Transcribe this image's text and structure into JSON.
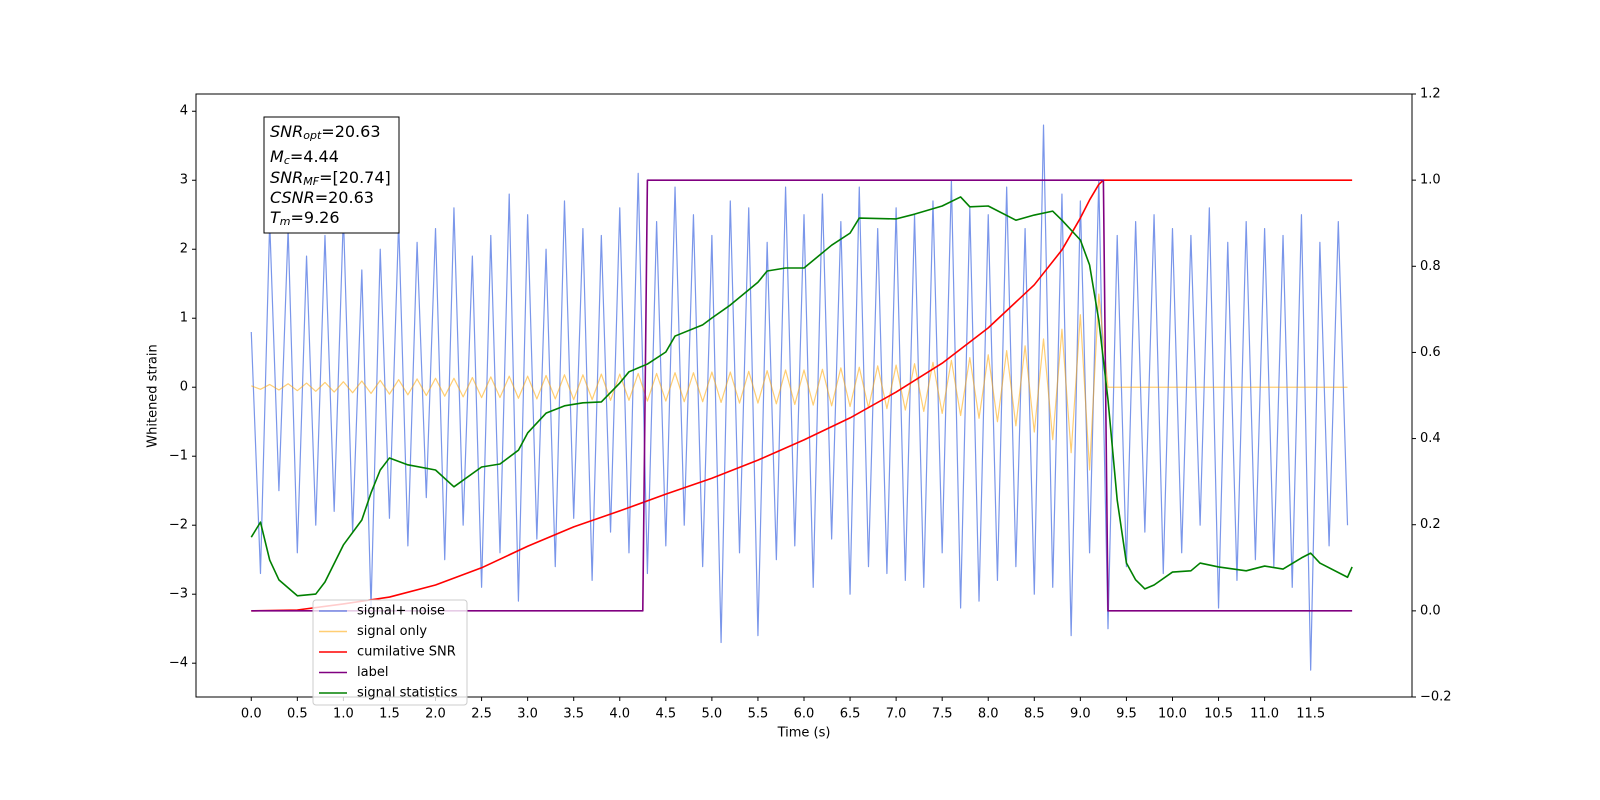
{
  "chart_data": {
    "type": "line",
    "xlabel": "Time (s)",
    "ylabel": "Whitened strain",
    "xlim": [
      -0.6,
      12.6
    ],
    "ylim": [
      -4.49,
      4.25
    ],
    "y2lim": [
      -0.2,
      1.2
    ],
    "xticks": [
      {
        "value": 0,
        "label": "0.0"
      },
      0.5,
      {
        "value": 1,
        "label": "1.0"
      },
      1.5,
      {
        "value": 2,
        "label": "2.0"
      },
      2.5,
      {
        "value": 3,
        "label": "3.0"
      },
      3.5,
      {
        "value": 4,
        "label": "4.0"
      },
      4.5,
      {
        "value": 5,
        "label": "5.0"
      },
      5.5,
      {
        "value": 6,
        "label": "6.0"
      },
      6.5,
      {
        "value": 7,
        "label": "7.0"
      },
      7.5,
      {
        "value": 8,
        "label": "8.0"
      },
      8.5,
      {
        "value": 9,
        "label": "9.0"
      },
      9.5,
      {
        "value": 10,
        "label": "10.0"
      },
      10.5,
      {
        "value": 11,
        "label": "11.0"
      },
      11.5
    ],
    "yticks": [
      {
        "value": -4,
        "label": "−4"
      },
      {
        "value": -3,
        "label": "−3"
      },
      {
        "value": -2,
        "label": "−2"
      },
      {
        "value": -1,
        "label": "−1"
      },
      0,
      1,
      2,
      3,
      4
    ],
    "y2ticks": [
      {
        "value": -0.2,
        "label": "−0.2"
      },
      {
        "value": 0,
        "label": "0.0"
      },
      0.2,
      0.4,
      0.6,
      0.8,
      {
        "value": 1,
        "label": "1.0"
      },
      1.2
    ],
    "annotations": [
      {
        "symbol": "SNR",
        "sub": "opt",
        "text": "=20.63"
      },
      {
        "symbol": "M",
        "sub": "c",
        "text": "=4.44"
      },
      {
        "symbol": "SNR",
        "sub": "MF",
        "text": "=[20.74]"
      },
      {
        "symbol": "CSNR",
        "text": "=20.63"
      },
      {
        "symbol": "T",
        "sub": "m",
        "text": "=9.26"
      }
    ],
    "x": [
      0,
      0.1,
      0.2,
      0.3,
      0.4,
      0.5,
      0.6,
      0.7,
      0.8,
      0.9,
      1,
      1.1,
      1.2,
      1.3,
      1.4,
      1.5,
      1.6,
      1.7,
      1.8,
      1.9,
      2,
      2.1,
      2.2,
      2.3,
      2.4,
      2.5,
      2.6,
      2.7,
      2.8,
      2.9,
      3,
      3.1,
      3.2,
      3.3,
      3.4,
      3.5,
      3.6,
      3.7,
      3.8,
      3.9,
      4,
      4.1,
      4.2,
      4.3,
      4.4,
      4.5,
      4.6,
      4.7,
      4.8,
      4.9,
      5,
      5.1,
      5.2,
      5.3,
      5.4,
      5.5,
      5.6,
      5.7,
      5.8,
      5.9,
      6,
      6.1,
      6.2,
      6.3,
      6.4,
      6.5,
      6.6,
      6.7,
      6.8,
      6.9,
      7,
      7.1,
      7.2,
      7.3,
      7.4,
      7.5,
      7.6,
      7.7,
      7.8,
      7.9,
      8,
      8.1,
      8.2,
      8.3,
      8.4,
      8.5,
      8.6,
      8.7,
      8.8,
      8.9,
      9,
      9.1,
      9.2,
      9.3,
      9.4,
      9.5,
      9.6,
      9.7,
      9.8,
      9.9,
      10,
      10.1,
      10.2,
      10.3,
      10.4,
      10.5,
      10.6,
      10.7,
      10.8,
      10.9,
      11,
      11.1,
      11.2,
      11.3,
      11.4,
      11.5,
      11.6,
      11.7,
      11.8,
      11.9
    ],
    "series": [
      {
        "name": "signal+ noise",
        "color": "#4169e1",
        "values": [
          0.8,
          -2.7,
          2.4,
          -1.5,
          2.3,
          -2.4,
          1.9,
          -2.0,
          2.2,
          -1.8,
          2.5,
          -2.1,
          1.7,
          -3.2,
          2.0,
          -1.9,
          2.4,
          -2.3,
          2.1,
          -1.6,
          2.3,
          -2.5,
          2.6,
          -2.0,
          1.9,
          -2.9,
          2.2,
          -2.4,
          2.8,
          -3.1,
          2.5,
          -2.2,
          2.0,
          -2.6,
          2.7,
          -1.9,
          2.3,
          -2.8,
          2.2,
          -2.1,
          2.6,
          -2.4,
          3.1,
          -2.7,
          2.4,
          -2.3,
          2.9,
          -2.0,
          2.5,
          -2.6,
          2.2,
          -3.7,
          2.7,
          -2.4,
          2.6,
          -3.6,
          2.1,
          -2.5,
          2.9,
          -2.3,
          2.5,
          -2.9,
          2.8,
          -2.2,
          2.4,
          -3.0,
          2.9,
          -2.6,
          2.3,
          -2.7,
          2.6,
          -2.8,
          2.5,
          -2.9,
          2.7,
          -2.4,
          3.0,
          -3.2,
          2.6,
          -3.1,
          2.5,
          -2.8,
          2.9,
          -2.6,
          2.3,
          -3.0,
          3.8,
          -2.9,
          2.8,
          -3.6,
          2.7,
          -2.4,
          3.0,
          -3.5,
          2.2,
          -2.6,
          2.4,
          -2.1,
          2.5,
          -2.7,
          2.3,
          -2.4,
          2.2,
          -2.0,
          2.6,
          -3.2,
          2.1,
          -2.8,
          2.4,
          -2.5,
          2.3,
          -2.6,
          2.2,
          -2.9,
          2.5,
          -4.1,
          2.1,
          -2.3,
          2.4,
          -2.0
        ]
      },
      {
        "name": "signal only",
        "color": "#ffa500",
        "values": [
          0.02,
          -0.03,
          0.04,
          -0.04,
          0.05,
          -0.05,
          0.06,
          -0.06,
          0.07,
          -0.07,
          0.08,
          -0.08,
          0.09,
          -0.09,
          0.1,
          -0.1,
          0.11,
          -0.11,
          0.12,
          -0.12,
          0.13,
          -0.13,
          0.13,
          -0.14,
          0.14,
          -0.15,
          0.15,
          -0.15,
          0.16,
          -0.16,
          0.16,
          -0.17,
          0.17,
          -0.17,
          0.18,
          -0.18,
          0.18,
          -0.18,
          0.19,
          -0.19,
          0.19,
          -0.19,
          0.2,
          -0.2,
          0.2,
          -0.2,
          0.21,
          -0.21,
          0.21,
          -0.21,
          0.22,
          -0.22,
          0.22,
          -0.23,
          0.23,
          -0.23,
          0.24,
          -0.24,
          0.25,
          -0.25,
          0.25,
          -0.26,
          0.26,
          -0.27,
          0.28,
          -0.28,
          0.29,
          -0.3,
          0.31,
          -0.31,
          0.32,
          -0.33,
          0.34,
          -0.35,
          0.36,
          -0.38,
          0.39,
          -0.41,
          0.43,
          -0.45,
          0.47,
          -0.5,
          0.53,
          -0.56,
          0.6,
          -0.65,
          0.7,
          -0.76,
          0.84,
          -0.95,
          1.05,
          -1.2,
          1.35,
          0,
          0,
          0,
          0,
          0,
          0,
          0,
          0,
          0,
          0,
          0,
          0,
          0,
          0,
          0,
          0,
          0,
          0,
          0,
          0,
          0,
          0,
          0,
          0,
          0,
          0,
          0
        ]
      },
      {
        "name": "cumilative SNR",
        "color": "#ff0000",
        "axis": "y2",
        "x": [
          0,
          0.5,
          1,
          1.5,
          2,
          2.5,
          3,
          3.5,
          4,
          4.5,
          5,
          5.5,
          6,
          6.5,
          7,
          7.5,
          8,
          8.5,
          8.8,
          9,
          9.1,
          9.2,
          9.25,
          11.95
        ],
        "values": [
          0,
          0.002,
          0.016,
          0.032,
          0.06,
          0.1,
          0.15,
          0.195,
          0.232,
          0.271,
          0.308,
          0.35,
          0.397,
          0.448,
          0.508,
          0.575,
          0.657,
          0.757,
          0.838,
          0.912,
          0.954,
          0.99,
          1,
          1
        ]
      },
      {
        "name": "label",
        "color": "#800080",
        "axis": "y2",
        "x": [
          0,
          4.25,
          4.3,
          9.25,
          9.3,
          11.95
        ],
        "values": [
          0,
          0,
          1,
          1,
          0,
          0
        ]
      },
      {
        "name": "signal statistics",
        "color": "#008000",
        "axis": "y2",
        "x": [
          0,
          0.1,
          0.2,
          0.3,
          0.5,
          0.7,
          0.8,
          1,
          1.2,
          1.3,
          1.4,
          1.5,
          1.7,
          2,
          2.2,
          2.5,
          2.7,
          2.9,
          3,
          3.2,
          3.4,
          3.6,
          3.8,
          4,
          4.1,
          4.3,
          4.5,
          4.6,
          4.9,
          5,
          5.2,
          5.5,
          5.6,
          5.8,
          6,
          6.3,
          6.5,
          6.6,
          7,
          7.2,
          7.5,
          7.7,
          7.8,
          8,
          8.3,
          8.5,
          8.7,
          8.8,
          9,
          9.1,
          9.2,
          9.3,
          9.4,
          9.5,
          9.6,
          9.7,
          9.8,
          10,
          10.2,
          10.3,
          10.5,
          10.8,
          11,
          11.2,
          11.4,
          11.5,
          11.6,
          11.9,
          11.95
        ],
        "values": [
          0.171,
          0.206,
          0.118,
          0.072,
          0.035,
          0.039,
          0.067,
          0.153,
          0.211,
          0.274,
          0.327,
          0.355,
          0.339,
          0.327,
          0.288,
          0.334,
          0.341,
          0.373,
          0.413,
          0.459,
          0.476,
          0.483,
          0.485,
          0.529,
          0.555,
          0.573,
          0.601,
          0.638,
          0.664,
          0.68,
          0.71,
          0.763,
          0.789,
          0.796,
          0.796,
          0.849,
          0.877,
          0.912,
          0.91,
          0.921,
          0.94,
          0.961,
          0.938,
          0.94,
          0.907,
          0.919,
          0.928,
          0.907,
          0.861,
          0.803,
          0.675,
          0.49,
          0.257,
          0.111,
          0.072,
          0.051,
          0.06,
          0.09,
          0.093,
          0.111,
          0.102,
          0.093,
          0.104,
          0.097,
          0.123,
          0.134,
          0.111,
          0.078,
          0.102
        ]
      }
    ]
  }
}
